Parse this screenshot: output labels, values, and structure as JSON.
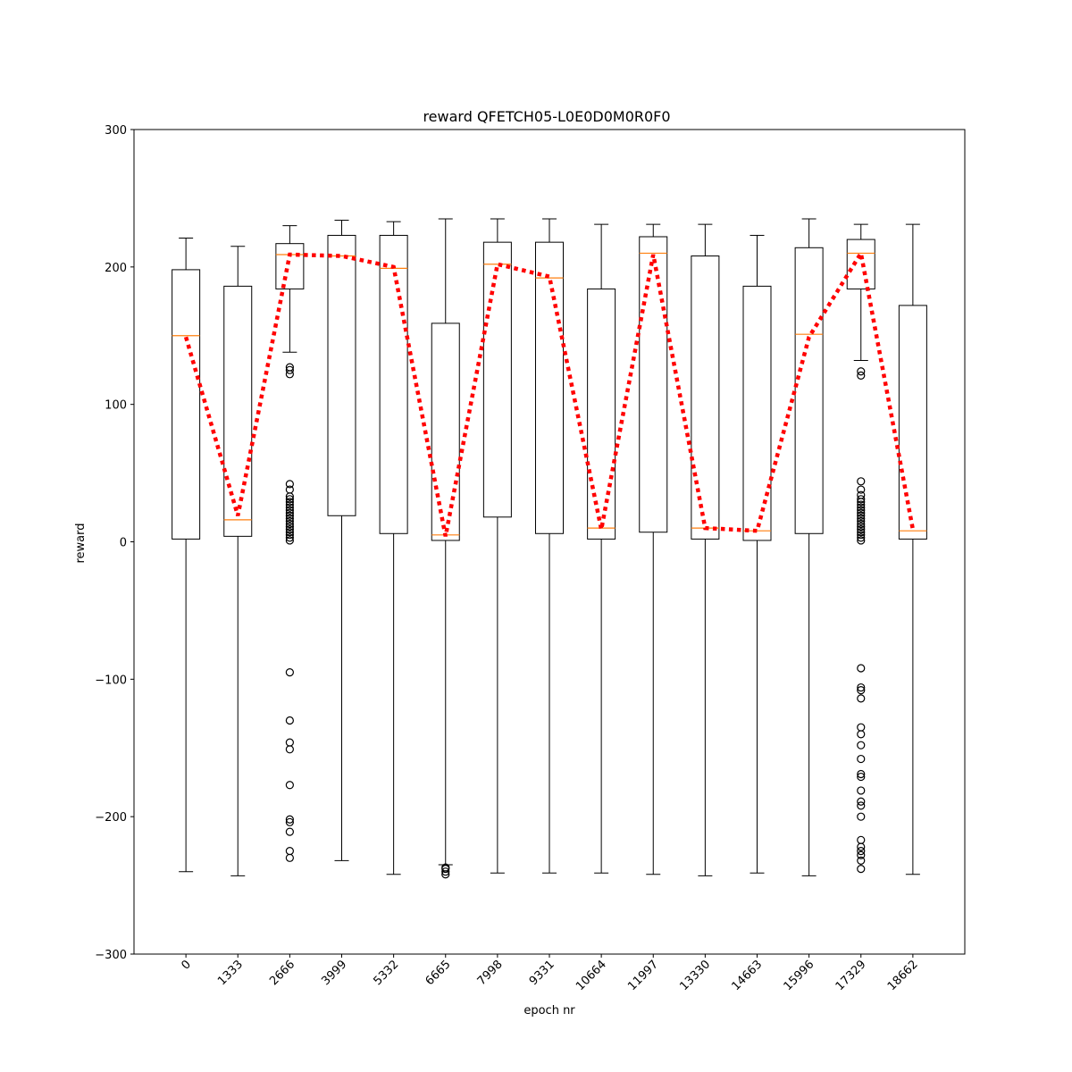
{
  "chart_data": {
    "type": "box",
    "title": "reward QFETCH05-L0E0D0M0R0F0",
    "xlabel": "epoch nr",
    "ylabel": "reward",
    "ylim": [
      -300,
      300
    ],
    "yticks": [
      -300,
      -200,
      -100,
      0,
      100,
      200,
      300
    ],
    "categories": [
      "0",
      "1333",
      "2666",
      "3999",
      "5332",
      "6665",
      "7998",
      "9331",
      "10664",
      "11997",
      "13330",
      "14663",
      "15996",
      "17329",
      "18662"
    ],
    "x_tick_rotation_deg": 45,
    "grid": false,
    "legend": "none",
    "boxes": [
      {
        "whisker_low": -240,
        "q1": 2,
        "median": 150,
        "q3": 198,
        "whisker_high": 221,
        "fliers": []
      },
      {
        "whisker_low": -243,
        "q1": 4,
        "median": 16,
        "q3": 186,
        "whisker_high": 215,
        "fliers": []
      },
      {
        "whisker_low": 138,
        "q1": 184,
        "median": 209,
        "q3": 217,
        "whisker_high": 230,
        "fliers": [
          127,
          125,
          122,
          42,
          38,
          33,
          31,
          29,
          27,
          25,
          23,
          21,
          19,
          17,
          15,
          13,
          11,
          9,
          7,
          5,
          3,
          1,
          -95,
          -130,
          -146,
          -151,
          -177,
          -202,
          -204,
          -211,
          -225,
          -230
        ]
      },
      {
        "whisker_low": -232,
        "q1": 19,
        "median": 208,
        "q3": 223,
        "whisker_high": 234,
        "fliers": []
      },
      {
        "whisker_low": -242,
        "q1": 6,
        "median": 199,
        "q3": 223,
        "whisker_high": 233,
        "fliers": []
      },
      {
        "whisker_low": -235,
        "q1": 1,
        "median": 5,
        "q3": 159,
        "whisker_high": 235,
        "fliers": [
          -237,
          -238,
          -240,
          -242
        ]
      },
      {
        "whisker_low": -241,
        "q1": 18,
        "median": 202,
        "q3": 218,
        "whisker_high": 235,
        "fliers": []
      },
      {
        "whisker_low": -241,
        "q1": 6,
        "median": 192,
        "q3": 218,
        "whisker_high": 235,
        "fliers": []
      },
      {
        "whisker_low": -241,
        "q1": 2,
        "median": 10,
        "q3": 184,
        "whisker_high": 231,
        "fliers": []
      },
      {
        "whisker_low": -242,
        "q1": 7,
        "median": 210,
        "q3": 222,
        "whisker_high": 231,
        "fliers": []
      },
      {
        "whisker_low": -243,
        "q1": 2,
        "median": 10,
        "q3": 208,
        "whisker_high": 231,
        "fliers": []
      },
      {
        "whisker_low": -241,
        "q1": 1,
        "median": 8,
        "q3": 186,
        "whisker_high": 223,
        "fliers": []
      },
      {
        "whisker_low": -243,
        "q1": 6,
        "median": 151,
        "q3": 214,
        "whisker_high": 235,
        "fliers": []
      },
      {
        "whisker_low": 132,
        "q1": 184,
        "median": 210,
        "q3": 220,
        "whisker_high": 231,
        "fliers": [
          124,
          121,
          44,
          38,
          34,
          31,
          29,
          27,
          25,
          23,
          21,
          19,
          17,
          15,
          13,
          11,
          9,
          7,
          5,
          3,
          1,
          -92,
          -106,
          -108,
          -114,
          -135,
          -140,
          -148,
          -158,
          -169,
          -171,
          -181,
          -189,
          -192,
          -200,
          -217,
          -222,
          -225,
          -228,
          -232,
          -238
        ]
      },
      {
        "whisker_low": -242,
        "q1": 2,
        "median": 8,
        "q3": 172,
        "whisker_high": 231,
        "fliers": []
      }
    ],
    "mean_line": {
      "style": "dotted",
      "color": "#ff0000",
      "values": [
        149,
        19,
        209,
        208,
        200,
        4,
        202,
        193,
        9,
        209,
        10,
        8,
        149,
        210,
        9
      ]
    },
    "colors": {
      "box": "#000000",
      "median": "#ff7f0e",
      "mean_line": "#ff0000"
    }
  }
}
